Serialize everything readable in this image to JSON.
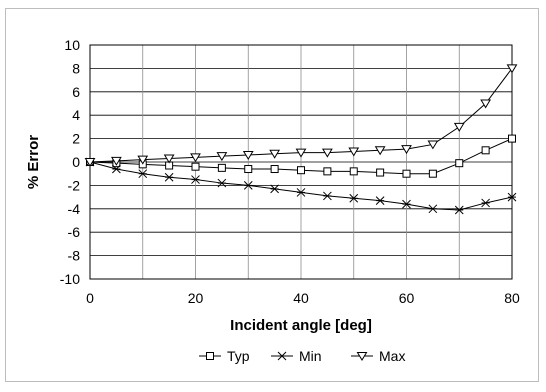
{
  "chart_data": {
    "type": "line",
    "title": "",
    "xlabel": "Incident angle [deg]",
    "ylabel": "% Error",
    "xlim": [
      0,
      80
    ],
    "ylim": [
      -10,
      10
    ],
    "xticks": [
      0,
      20,
      40,
      60,
      80
    ],
    "yticks": [
      10,
      8,
      6,
      4,
      2,
      0,
      -2,
      -4,
      -6,
      -8,
      -10
    ],
    "grid": true,
    "legend_position": "bottom",
    "series": [
      {
        "name": "Typ",
        "marker": "square",
        "x": [
          0,
          5,
          10,
          15,
          20,
          25,
          30,
          35,
          40,
          45,
          50,
          55,
          60,
          65,
          70,
          75,
          80
        ],
        "y": [
          0,
          -0.1,
          -0.2,
          -0.3,
          -0.4,
          -0.5,
          -0.6,
          -0.6,
          -0.7,
          -0.8,
          -0.8,
          -0.9,
          -1.0,
          -1.0,
          -0.1,
          1.0,
          2.0
        ]
      },
      {
        "name": "Min",
        "marker": "star",
        "x": [
          0,
          5,
          10,
          15,
          20,
          25,
          30,
          35,
          40,
          45,
          50,
          55,
          60,
          65,
          70,
          75,
          80
        ],
        "y": [
          0,
          -0.6,
          -1.0,
          -1.3,
          -1.5,
          -1.8,
          -2.0,
          -2.3,
          -2.6,
          -2.9,
          -3.1,
          -3.3,
          -3.6,
          -4.0,
          -4.1,
          -3.5,
          -3.0
        ]
      },
      {
        "name": "Max",
        "marker": "triangle-down",
        "x": [
          0,
          5,
          10,
          15,
          20,
          25,
          30,
          35,
          40,
          45,
          50,
          55,
          60,
          65,
          70,
          75,
          80
        ],
        "y": [
          0,
          0.1,
          0.2,
          0.3,
          0.4,
          0.5,
          0.6,
          0.7,
          0.8,
          0.8,
          0.9,
          1.0,
          1.1,
          1.5,
          3.0,
          5.0,
          8.0
        ]
      }
    ]
  }
}
